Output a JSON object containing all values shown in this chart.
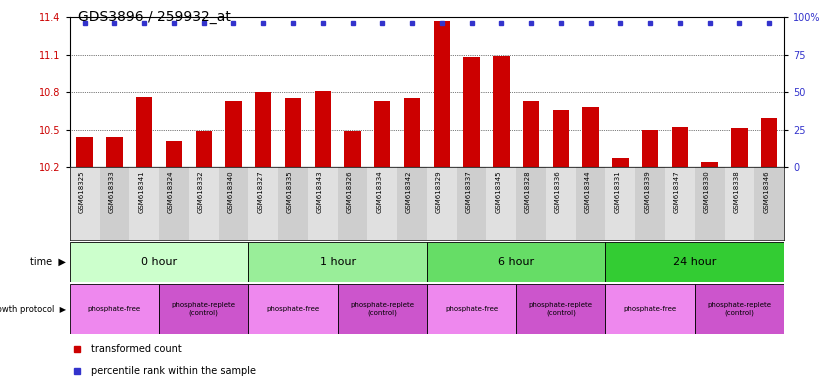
{
  "title": "GDS3896 / 259932_at",
  "samples": [
    "GSM618325",
    "GSM618333",
    "GSM618341",
    "GSM618324",
    "GSM618332",
    "GSM618340",
    "GSM618327",
    "GSM618335",
    "GSM618343",
    "GSM618326",
    "GSM618334",
    "GSM618342",
    "GSM618329",
    "GSM618337",
    "GSM618345",
    "GSM618328",
    "GSM618336",
    "GSM618344",
    "GSM618331",
    "GSM618339",
    "GSM618347",
    "GSM618330",
    "GSM618338",
    "GSM618346"
  ],
  "bar_values": [
    10.44,
    10.44,
    10.76,
    10.41,
    10.49,
    10.73,
    10.8,
    10.75,
    10.81,
    10.49,
    10.73,
    10.75,
    11.37,
    11.08,
    11.09,
    10.73,
    10.66,
    10.68,
    10.27,
    10.5,
    10.52,
    10.24,
    10.51,
    10.59
  ],
  "bar_color": "#cc0000",
  "percentile_color": "#3333cc",
  "ymin": 10.2,
  "ymax": 11.4,
  "y_ticks": [
    10.2,
    10.5,
    10.8,
    11.1,
    11.4
  ],
  "y_ticks_right": [
    0,
    25,
    50,
    75,
    100
  ],
  "time_groups": [
    {
      "label": "0 hour",
      "start": 0,
      "end": 6,
      "color": "#ccffcc"
    },
    {
      "label": "1 hour",
      "start": 6,
      "end": 12,
      "color": "#99ee99"
    },
    {
      "label": "6 hour",
      "start": 12,
      "end": 18,
      "color": "#66dd66"
    },
    {
      "label": "24 hour",
      "start": 18,
      "end": 24,
      "color": "#33cc33"
    }
  ],
  "protocol_groups": [
    {
      "label": "phosphate-free",
      "start": 0,
      "end": 3,
      "color": "#ee88ee"
    },
    {
      "label": "phosphate-replete\n(control)",
      "start": 3,
      "end": 6,
      "color": "#cc55cc"
    },
    {
      "label": "phosphate-free",
      "start": 6,
      "end": 9,
      "color": "#ee88ee"
    },
    {
      "label": "phosphate-replete\n(control)",
      "start": 9,
      "end": 12,
      "color": "#cc55cc"
    },
    {
      "label": "phosphate-free",
      "start": 12,
      "end": 15,
      "color": "#ee88ee"
    },
    {
      "label": "phosphate-replete\n(control)",
      "start": 15,
      "end": 18,
      "color": "#cc55cc"
    },
    {
      "label": "phosphate-free",
      "start": 18,
      "end": 21,
      "color": "#ee88ee"
    },
    {
      "label": "phosphate-replete\n(control)",
      "start": 21,
      "end": 24,
      "color": "#cc55cc"
    }
  ],
  "legend_items": [
    {
      "label": "transformed count",
      "color": "#cc0000"
    },
    {
      "label": "percentile rank within the sample",
      "color": "#3333cc"
    }
  ]
}
